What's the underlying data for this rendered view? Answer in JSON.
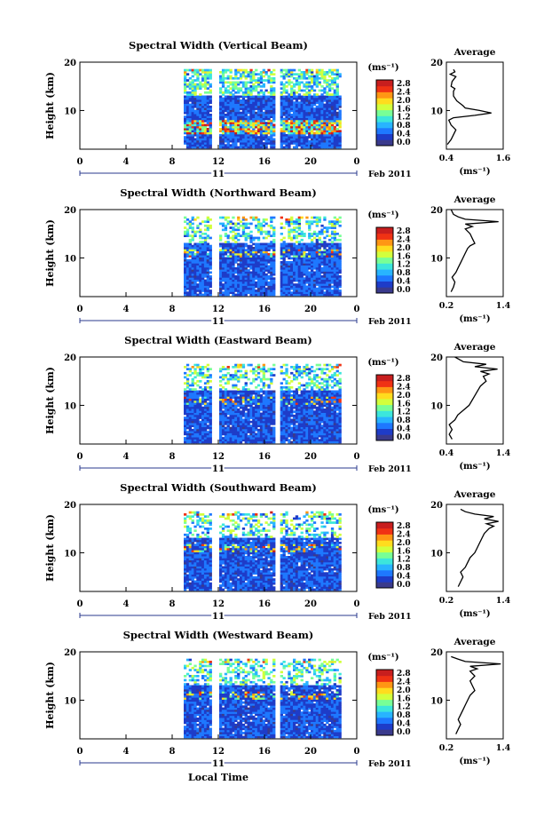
{
  "figure": {
    "xlabel": "Local Time",
    "date_label": "Feb 2011",
    "day_label": "11",
    "ylabel": "Height (km)",
    "unit_label": "(ms⁻¹)",
    "avg_title": "Average",
    "avg_xlabel": "(ms⁻¹)",
    "colorbar_ticks": [
      "0.0",
      "0.4",
      "0.8",
      "1.2",
      "1.6",
      "2.0",
      "2.4",
      "2.8"
    ],
    "colorbar_colors": [
      "#3a3a8c",
      "#1e3cc8",
      "#1e78ff",
      "#28b4ff",
      "#3ce6dc",
      "#78ff96",
      "#d2ff3c",
      "#ffdc1e",
      "#ff9614",
      "#f03214",
      "#c81e1e"
    ],
    "time_ticks": [
      "0",
      "4",
      "8",
      "12",
      "16",
      "20",
      "0"
    ],
    "height_ticks": [
      "10",
      "20"
    ]
  },
  "chart_data": [
    {
      "type": "heatmap",
      "title": "Spectral Width (Vertical Beam)",
      "x_unit": "Local Time (h)",
      "xlim": [
        0,
        24
      ],
      "y_unit": "Height (km)",
      "ylim": [
        2,
        20
      ],
      "data_start_hour": 9.0,
      "data_end_hour": 22.6,
      "gaps_hours": [
        [
          11.6,
          11.9
        ],
        [
          17.0,
          17.3
        ]
      ],
      "top_km": 18.5,
      "clim": [
        0.0,
        3.0
      ],
      "avg_profile": {
        "xlim": [
          0.4,
          1.6
        ],
        "xticks": [
          "0.4",
          "1.6"
        ],
        "x": [
          0.42,
          0.5,
          0.55,
          0.6,
          0.5,
          0.45,
          0.55,
          1.0,
          1.35,
          1.1,
          0.8,
          0.75,
          0.62,
          0.55,
          0.55,
          0.58,
          0.5,
          0.52,
          0.6,
          0.48,
          0.58,
          0.55
        ],
        "y": [
          3,
          4,
          5,
          6,
          7,
          8,
          8.5,
          9,
          9.5,
          10,
          10.5,
          11,
          12,
          13,
          14,
          14.5,
          15,
          16,
          17,
          17.5,
          18,
          18.5
        ]
      }
    },
    {
      "type": "heatmap",
      "title": "Spectral Width (Northward Beam)",
      "x_unit": "Local Time (h)",
      "xlim": [
        0,
        24
      ],
      "y_unit": "Height (km)",
      "ylim": [
        2,
        20
      ],
      "data_start_hour": 9.0,
      "data_end_hour": 22.6,
      "gaps_hours": [
        [
          11.6,
          11.9
        ],
        [
          17.0,
          17.3
        ]
      ],
      "top_km": 18.5,
      "clim": [
        0.0,
        3.0
      ],
      "avg_profile": {
        "xlim": [
          0.2,
          1.4
        ],
        "xticks": [
          "0.2",
          "1.4"
        ],
        "x": [
          0.3,
          0.35,
          0.38,
          0.32,
          0.4,
          0.45,
          0.5,
          0.55,
          0.6,
          0.65,
          0.7,
          0.8,
          0.75,
          0.7,
          0.6,
          0.75,
          0.6,
          1.3,
          0.6,
          0.45,
          0.35,
          0.3
        ],
        "y": [
          3,
          4,
          5,
          6,
          7,
          8,
          9,
          10,
          11,
          12,
          12.5,
          13,
          14,
          15,
          16,
          16.5,
          17,
          17.5,
          18,
          18.5,
          19,
          20
        ]
      }
    },
    {
      "type": "heatmap",
      "title": "Spectral Width (Eastward Beam)",
      "x_unit": "Local Time (h)",
      "xlim": [
        0,
        24
      ],
      "y_unit": "Height (km)",
      "ylim": [
        2,
        20
      ],
      "data_start_hour": 9.0,
      "data_end_hour": 22.6,
      "gaps_hours": [
        [
          11.6,
          11.9
        ],
        [
          17.0,
          17.3
        ]
      ],
      "top_km": 18.5,
      "clim": [
        0.0,
        3.0
      ],
      "avg_profile": {
        "xlim": [
          0.4,
          1.4
        ],
        "xticks": [
          "0.4",
          "1.4"
        ],
        "x": [
          0.5,
          0.45,
          0.5,
          0.45,
          0.55,
          0.6,
          0.7,
          0.8,
          0.85,
          0.9,
          0.95,
          1.0,
          1.05,
          1.1,
          1.05,
          1.15,
          1.0,
          1.3,
          0.9,
          1.1,
          0.7,
          0.55
        ],
        "y": [
          3,
          4,
          5,
          6,
          7,
          8,
          9,
          10,
          11,
          12,
          13,
          14,
          14.5,
          15,
          16,
          16.5,
          17,
          17.5,
          18,
          18.5,
          19,
          20
        ]
      }
    },
    {
      "type": "heatmap",
      "title": "Spectral Width (Southward Beam)",
      "x_unit": "Local Time (h)",
      "xlim": [
        0,
        24
      ],
      "y_unit": "Height (km)",
      "ylim": [
        2,
        20
      ],
      "data_start_hour": 9.0,
      "data_end_hour": 22.6,
      "gaps_hours": [
        [
          11.6,
          11.9
        ],
        [
          17.0,
          17.3
        ]
      ],
      "top_km": 18.5,
      "clim": [
        0.0,
        3.0
      ],
      "avg_profile": {
        "xlim": [
          0.2,
          1.4
        ],
        "xticks": [
          "0.2",
          "1.4"
        ],
        "x": [
          0.45,
          0.5,
          0.55,
          0.5,
          0.6,
          0.65,
          0.7,
          0.8,
          0.85,
          0.9,
          0.95,
          1.0,
          1.1,
          1.2,
          1.05,
          1.3,
          1.0,
          1.2,
          0.8,
          0.6,
          0.5
        ],
        "y": [
          3,
          4,
          5,
          6,
          7,
          8,
          9,
          10,
          11,
          12,
          13,
          14,
          15,
          15.5,
          16,
          16.5,
          17,
          17.5,
          18,
          18.5,
          19
        ]
      }
    },
    {
      "type": "heatmap",
      "title": "Spectral Width (Westward Beam)",
      "x_unit": "Local Time (h)",
      "xlim": [
        0,
        24
      ],
      "y_unit": "Height (km)",
      "ylim": [
        2,
        20
      ],
      "data_start_hour": 9.0,
      "data_end_hour": 22.6,
      "gaps_hours": [
        [
          11.6,
          11.9
        ],
        [
          17.0,
          17.3
        ]
      ],
      "top_km": 18.5,
      "clim": [
        0.0,
        3.0
      ],
      "avg_profile": {
        "xlim": [
          0.2,
          1.4
        ],
        "xticks": [
          "0.2",
          "1.4"
        ],
        "x": [
          0.4,
          0.45,
          0.5,
          0.45,
          0.5,
          0.55,
          0.6,
          0.65,
          0.7,
          0.8,
          0.75,
          0.7,
          0.8,
          0.75,
          0.7,
          0.85,
          0.7,
          1.35,
          0.6,
          0.45,
          0.3
        ],
        "y": [
          3,
          4,
          5,
          6,
          7,
          8,
          9,
          10,
          11,
          12,
          13,
          14,
          15,
          15.5,
          16,
          16.5,
          17,
          17.5,
          18,
          18.5,
          19
        ]
      }
    }
  ]
}
